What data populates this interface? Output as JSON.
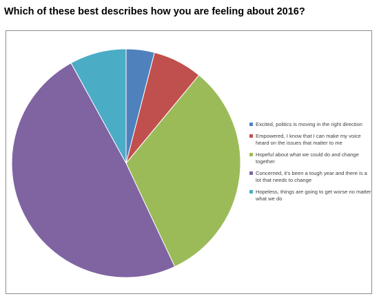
{
  "question": "Which of these best describes how you are feeling about 2016?",
  "chart_data": {
    "type": "pie",
    "title": "",
    "legend_position": "right",
    "slices": [
      {
        "label": "Excited, politics is moving in the right direction",
        "value": 4,
        "color": "#4f81bd"
      },
      {
        "label": "Empowered, I know that I can make my voice heard on the issues that matter to me",
        "value": 7,
        "color": "#c0504d"
      },
      {
        "label": "Hopeful about what we could do and change together",
        "value": 32,
        "color": "#9bbb59"
      },
      {
        "label": "Concerned, it's been a tough year and there is a lot that needs to change",
        "value": 49,
        "color": "#8064a2"
      },
      {
        "label": "Hopeless, things are going to get worse no matter what we do",
        "value": 8,
        "color": "#4bacc6"
      }
    ]
  }
}
